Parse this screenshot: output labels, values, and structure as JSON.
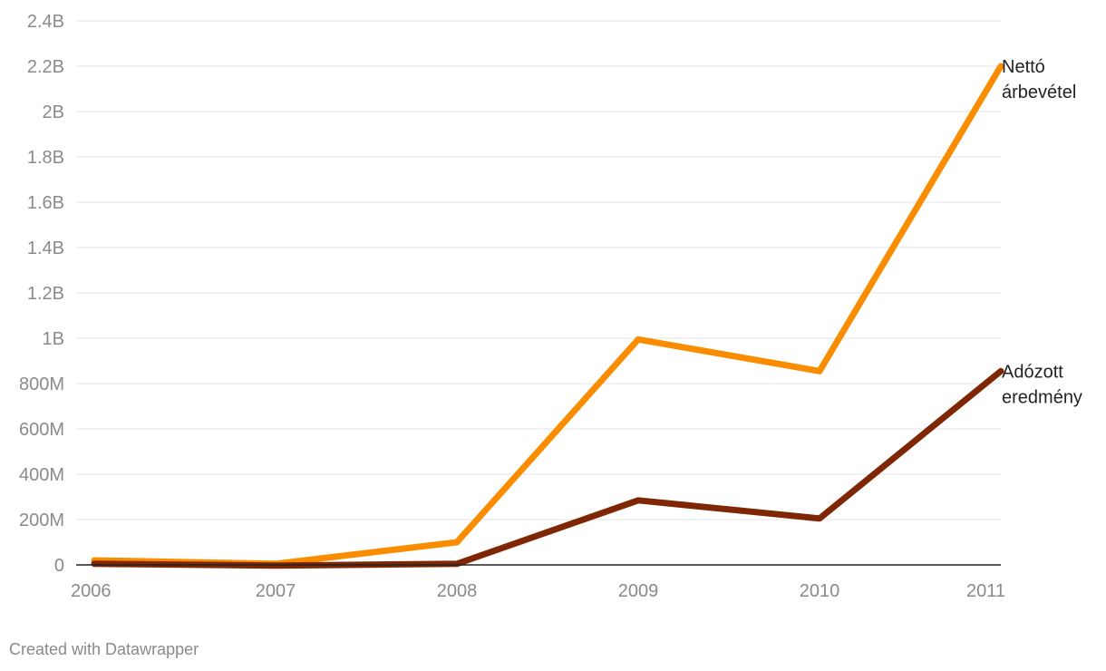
{
  "chart_data": {
    "type": "line",
    "x": [
      "2006",
      "2007",
      "2008",
      "2009",
      "2010",
      "2011"
    ],
    "series": [
      {
        "name": "Nettó árbevétel",
        "label_lines": [
          "Nettó",
          "árbevétel"
        ],
        "color": "#fa8c00",
        "values": [
          20000000,
          5000000,
          100000000,
          995000000,
          855000000,
          2200000000
        ]
      },
      {
        "name": "Adózott eredmény",
        "label_lines": [
          "Adózott",
          "eredmény"
        ],
        "color": "#7f2704",
        "values": [
          5000000,
          -3000000,
          5000000,
          285000000,
          205000000,
          855000000
        ]
      }
    ],
    "yticks": [
      0,
      200000000,
      400000000,
      600000000,
      800000000,
      1000000000,
      1200000000,
      1400000000,
      1600000000,
      1800000000,
      2000000000,
      2200000000,
      2400000000
    ],
    "ytick_labels": [
      "0",
      "200M",
      "400M",
      "600M",
      "800M",
      "1B",
      "1.2B",
      "1.4B",
      "1.6B",
      "1.8B",
      "2B",
      "2.2B",
      "2.4B"
    ],
    "ylim": [
      0,
      2400000000
    ],
    "grid": true,
    "title": "",
    "xlabel": "",
    "ylabel": ""
  },
  "footer": {
    "credit": "Created with Datawrapper"
  }
}
